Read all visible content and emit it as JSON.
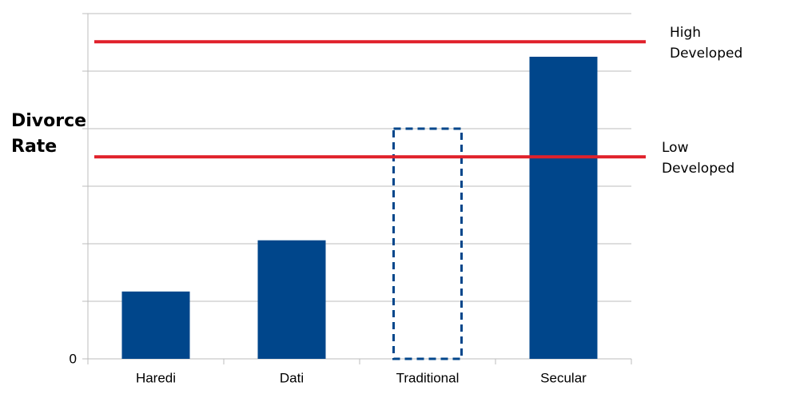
{
  "chart_data": {
    "type": "bar",
    "ylabel": "Divorce Rate",
    "categories": [
      "Haredi",
      "Dati",
      "Traditional",
      "Secular"
    ],
    "values": [
      1.17,
      2.06,
      4.0,
      5.25
    ],
    "dashed": [
      false,
      false,
      true,
      false
    ],
    "color": "#00468b",
    "ylim": [
      0,
      6
    ],
    "yticks": [
      0
    ],
    "grid_lines": [
      1,
      2,
      3,
      4,
      5,
      6
    ],
    "reference_lines": [
      {
        "label": "High Developed",
        "value": 5.51,
        "color": "#e0202a"
      },
      {
        "label": "Low Developed",
        "value": 3.51,
        "color": "#e0202a"
      }
    ]
  }
}
